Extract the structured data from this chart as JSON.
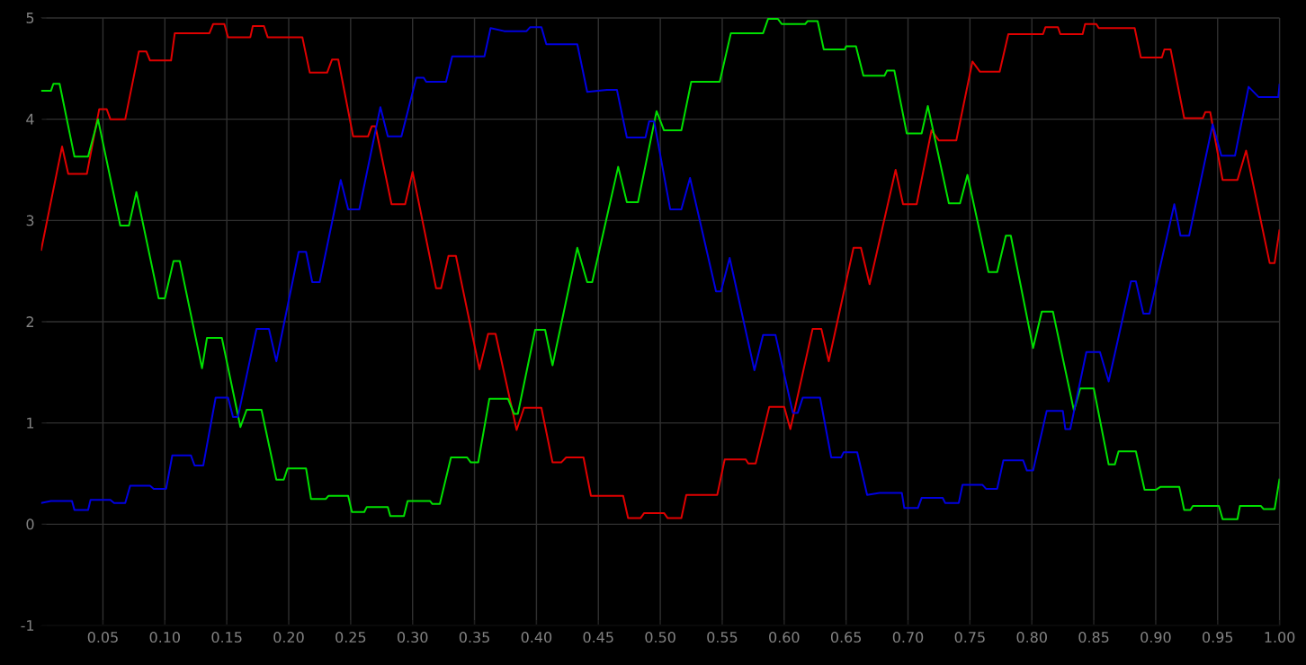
{
  "chart_data": {
    "type": "line",
    "xlim": [
      0,
      1
    ],
    "ylim": [
      -1,
      5
    ],
    "grid": true,
    "marker": "none",
    "line_style": "solid",
    "xticks": [
      {
        "value": 0.05,
        "label": "0.05"
      },
      {
        "value": 0.1,
        "label": "0.10"
      },
      {
        "value": 0.15,
        "label": "0.15"
      },
      {
        "value": 0.2,
        "label": "0.20"
      },
      {
        "value": 0.25,
        "label": "0.25"
      },
      {
        "value": 0.3,
        "label": "0.30"
      },
      {
        "value": 0.35,
        "label": "0.35"
      },
      {
        "value": 0.4,
        "label": "0.40"
      },
      {
        "value": 0.45,
        "label": "0.45"
      },
      {
        "value": 0.5,
        "label": "0.50"
      },
      {
        "value": 0.55,
        "label": "0.55"
      },
      {
        "value": 0.6,
        "label": "0.60"
      },
      {
        "value": 0.65,
        "label": "0.65"
      },
      {
        "value": 0.7,
        "label": "0.70"
      },
      {
        "value": 0.75,
        "label": "0.75"
      },
      {
        "value": 0.8,
        "label": "0.80"
      },
      {
        "value": 0.85,
        "label": "0.85"
      },
      {
        "value": 0.9,
        "label": "0.90"
      },
      {
        "value": 0.95,
        "label": "0.95"
      },
      {
        "value": 1.0,
        "label": "1.00"
      }
    ],
    "yticks": [
      -1,
      0,
      1,
      2,
      3,
      4,
      5
    ],
    "series": [
      {
        "color": "#e00000",
        "x": [
          0,
          0.017,
          0.022,
          0.037,
          0.047,
          0.053,
          0.056,
          0.068,
          0.079,
          0.085,
          0.088,
          0.105,
          0.108,
          0.136,
          0.139,
          0.148,
          0.151,
          0.169,
          0.171,
          0.18,
          0.183,
          0.211,
          0.217,
          0.231,
          0.235,
          0.24,
          0.252,
          0.264,
          0.267,
          0.27,
          0.283,
          0.294,
          0.3,
          0.319,
          0.323,
          0.329,
          0.335,
          0.354,
          0.361,
          0.367,
          0.384,
          0.39,
          0.404,
          0.413,
          0.42,
          0.424,
          0.438,
          0.444,
          0.47,
          0.474,
          0.484,
          0.487,
          0.503,
          0.506,
          0.517,
          0.521,
          0.546,
          0.552,
          0.569,
          0.571,
          0.577,
          0.588,
          0.6,
          0.605,
          0.623,
          0.63,
          0.636,
          0.656,
          0.662,
          0.669,
          0.69,
          0.696,
          0.707,
          0.719,
          0.725,
          0.739,
          0.752,
          0.758,
          0.774,
          0.781,
          0.809,
          0.811,
          0.821,
          0.823,
          0.841,
          0.843,
          0.852,
          0.854,
          0.883,
          0.888,
          0.905,
          0.907,
          0.912,
          0.923,
          0.938,
          0.94,
          0.944,
          0.954,
          0.966,
          0.973,
          0.992,
          0.996,
          1.0
        ],
        "values": [
          2.7,
          3.73,
          3.46,
          3.46,
          4.1,
          4.1,
          4.0,
          4.0,
          4.67,
          4.67,
          4.58,
          4.58,
          4.85,
          4.85,
          4.94,
          4.94,
          4.81,
          4.81,
          4.92,
          4.92,
          4.81,
          4.81,
          4.46,
          4.46,
          4.59,
          4.59,
          3.83,
          3.83,
          3.93,
          3.93,
          3.16,
          3.16,
          3.48,
          2.33,
          2.33,
          2.65,
          2.65,
          1.53,
          1.88,
          1.88,
          0.93,
          1.15,
          1.15,
          0.61,
          0.61,
          0.66,
          0.66,
          0.28,
          0.28,
          0.06,
          0.06,
          0.11,
          0.11,
          0.06,
          0.06,
          0.29,
          0.29,
          0.64,
          0.64,
          0.6,
          0.6,
          1.16,
          1.16,
          0.94,
          1.93,
          1.93,
          1.61,
          2.73,
          2.73,
          2.37,
          3.5,
          3.16,
          3.16,
          3.89,
          3.79,
          3.79,
          4.57,
          4.47,
          4.47,
          4.84,
          4.84,
          4.91,
          4.91,
          4.84,
          4.84,
          4.94,
          4.94,
          4.9,
          4.9,
          4.61,
          4.61,
          4.69,
          4.69,
          4.01,
          4.01,
          4.07,
          4.07,
          3.4,
          3.4,
          3.69,
          2.58,
          2.58,
          2.91
        ]
      },
      {
        "color": "#00e000",
        "x": [
          0,
          0.008,
          0.01,
          0.015,
          0.027,
          0.038,
          0.046,
          0.064,
          0.071,
          0.077,
          0.095,
          0.1,
          0.107,
          0.112,
          0.13,
          0.134,
          0.146,
          0.161,
          0.166,
          0.178,
          0.19,
          0.196,
          0.199,
          0.214,
          0.218,
          0.23,
          0.232,
          0.248,
          0.251,
          0.261,
          0.263,
          0.28,
          0.282,
          0.293,
          0.296,
          0.314,
          0.316,
          0.322,
          0.331,
          0.344,
          0.347,
          0.353,
          0.362,
          0.377,
          0.382,
          0.385,
          0.399,
          0.407,
          0.413,
          0.433,
          0.441,
          0.445,
          0.466,
          0.473,
          0.482,
          0.497,
          0.503,
          0.517,
          0.525,
          0.548,
          0.557,
          0.583,
          0.587,
          0.595,
          0.598,
          0.617,
          0.619,
          0.627,
          0.632,
          0.649,
          0.65,
          0.658,
          0.664,
          0.681,
          0.683,
          0.689,
          0.699,
          0.711,
          0.716,
          0.733,
          0.742,
          0.748,
          0.765,
          0.772,
          0.779,
          0.783,
          0.801,
          0.808,
          0.817,
          0.834,
          0.839,
          0.85,
          0.862,
          0.867,
          0.87,
          0.884,
          0.891,
          0.9,
          0.904,
          0.919,
          0.923,
          0.928,
          0.93,
          0.951,
          0.954,
          0.966,
          0.968,
          0.985,
          0.987,
          0.996,
          1.0
        ],
        "values": [
          4.28,
          4.28,
          4.35,
          4.35,
          3.63,
          3.63,
          4.0,
          2.95,
          2.95,
          3.28,
          2.23,
          2.23,
          2.6,
          2.6,
          1.54,
          1.84,
          1.84,
          0.96,
          1.13,
          1.13,
          0.44,
          0.44,
          0.55,
          0.55,
          0.25,
          0.25,
          0.28,
          0.28,
          0.12,
          0.12,
          0.17,
          0.17,
          0.08,
          0.08,
          0.23,
          0.23,
          0.2,
          0.2,
          0.66,
          0.66,
          0.61,
          0.61,
          1.24,
          1.24,
          1.09,
          1.09,
          1.92,
          1.92,
          1.57,
          2.73,
          2.39,
          2.39,
          3.53,
          3.18,
          3.18,
          4.08,
          3.89,
          3.89,
          4.37,
          4.37,
          4.85,
          4.85,
          4.99,
          4.99,
          4.94,
          4.94,
          4.97,
          4.97,
          4.69,
          4.69,
          4.72,
          4.72,
          4.43,
          4.43,
          4.48,
          4.48,
          3.86,
          3.86,
          4.13,
          3.17,
          3.17,
          3.45,
          2.49,
          2.49,
          2.85,
          2.85,
          1.74,
          2.1,
          2.1,
          1.12,
          1.34,
          1.34,
          0.59,
          0.59,
          0.72,
          0.72,
          0.34,
          0.34,
          0.37,
          0.37,
          0.14,
          0.14,
          0.18,
          0.18,
          0.05,
          0.05,
          0.18,
          0.18,
          0.15,
          0.15,
          0.45
        ]
      },
      {
        "color": "#0000e0",
        "x": [
          0,
          0.008,
          0.025,
          0.027,
          0.038,
          0.04,
          0.056,
          0.059,
          0.068,
          0.072,
          0.088,
          0.091,
          0.101,
          0.106,
          0.121,
          0.124,
          0.131,
          0.141,
          0.151,
          0.155,
          0.159,
          0.174,
          0.184,
          0.19,
          0.208,
          0.214,
          0.219,
          0.225,
          0.242,
          0.248,
          0.257,
          0.274,
          0.28,
          0.291,
          0.303,
          0.309,
          0.311,
          0.327,
          0.332,
          0.358,
          0.363,
          0.374,
          0.392,
          0.395,
          0.404,
          0.408,
          0.433,
          0.441,
          0.457,
          0.465,
          0.473,
          0.488,
          0.491,
          0.495,
          0.508,
          0.517,
          0.524,
          0.545,
          0.549,
          0.556,
          0.576,
          0.583,
          0.593,
          0.607,
          0.611,
          0.615,
          0.629,
          0.638,
          0.646,
          0.648,
          0.659,
          0.667,
          0.677,
          0.695,
          0.697,
          0.708,
          0.711,
          0.728,
          0.73,
          0.741,
          0.744,
          0.76,
          0.763,
          0.772,
          0.777,
          0.793,
          0.796,
          0.801,
          0.812,
          0.825,
          0.827,
          0.831,
          0.844,
          0.855,
          0.862,
          0.88,
          0.884,
          0.89,
          0.895,
          0.915,
          0.92,
          0.927,
          0.946,
          0.953,
          0.964,
          0.975,
          0.983,
          0.999,
          1.0
        ],
        "values": [
          0.21,
          0.23,
          0.23,
          0.14,
          0.14,
          0.24,
          0.24,
          0.21,
          0.21,
          0.38,
          0.38,
          0.35,
          0.35,
          0.68,
          0.68,
          0.58,
          0.58,
          1.25,
          1.25,
          1.06,
          1.06,
          1.93,
          1.93,
          1.61,
          2.69,
          2.69,
          2.39,
          2.39,
          3.4,
          3.11,
          3.11,
          4.12,
          3.83,
          3.83,
          4.41,
          4.41,
          4.37,
          4.37,
          4.62,
          4.62,
          4.9,
          4.87,
          4.87,
          4.91,
          4.91,
          4.74,
          4.74,
          4.27,
          4.29,
          4.29,
          3.82,
          3.82,
          3.98,
          3.98,
          3.11,
          3.11,
          3.42,
          2.3,
          2.3,
          2.63,
          1.52,
          1.87,
          1.87,
          1.1,
          1.1,
          1.25,
          1.25,
          0.66,
          0.66,
          0.71,
          0.71,
          0.29,
          0.31,
          0.31,
          0.16,
          0.16,
          0.26,
          0.26,
          0.21,
          0.21,
          0.39,
          0.39,
          0.35,
          0.35,
          0.63,
          0.63,
          0.53,
          0.53,
          1.12,
          1.12,
          0.94,
          0.94,
          1.7,
          1.7,
          1.41,
          2.4,
          2.4,
          2.08,
          2.08,
          3.16,
          2.85,
          2.85,
          3.95,
          3.64,
          3.64,
          4.32,
          4.22,
          4.22,
          4.35
        ]
      }
    ]
  }
}
